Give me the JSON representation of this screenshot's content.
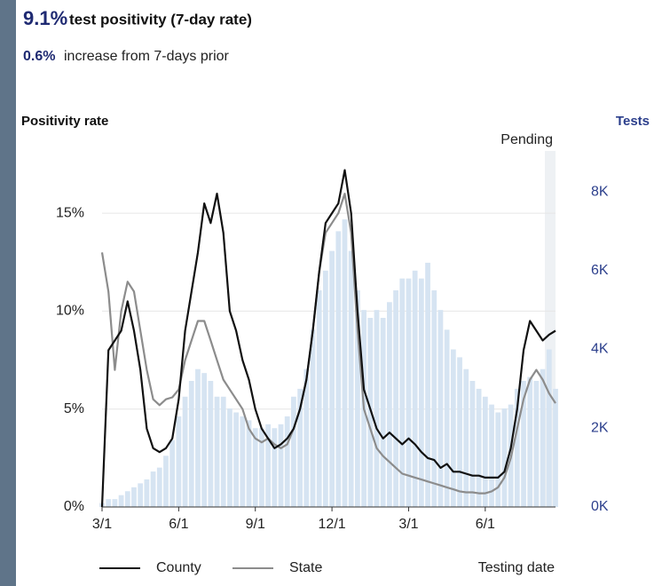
{
  "header": {
    "headline_value": "9.1%",
    "headline_text": "test positivity (7-day rate)",
    "change_value": "0.6%",
    "change_text": "increase from 7-days prior"
  },
  "chart_data": {
    "type": "line",
    "y_label": "Positivity rate",
    "y2_label": "Tests",
    "x_label": "Testing date",
    "annotation": "Pending",
    "categories": [
      "3/1",
      null,
      null,
      null,
      null,
      null,
      null,
      null,
      null,
      null,
      null,
      null,
      "6/1",
      null,
      null,
      null,
      null,
      null,
      null,
      null,
      null,
      null,
      null,
      null,
      "9/1",
      null,
      null,
      null,
      null,
      null,
      null,
      null,
      null,
      null,
      null,
      null,
      "12/1",
      null,
      null,
      null,
      null,
      null,
      null,
      null,
      null,
      null,
      null,
      null,
      "3/1",
      null,
      null,
      null,
      null,
      null,
      null,
      null,
      null,
      null,
      null,
      null,
      "6/1",
      null,
      null,
      null,
      null,
      null,
      null,
      null,
      null,
      null,
      null,
      null
    ],
    "series": [
      {
        "name": "Tests",
        "type": "bar",
        "axis": "y2",
        "color": "#d6e4f2",
        "values": [
          100,
          200,
          200,
          300,
          400,
          500,
          600,
          700,
          900,
          1000,
          1300,
          1700,
          2300,
          2800,
          3200,
          3500,
          3400,
          3200,
          2800,
          2800,
          2500,
          2400,
          2300,
          2200,
          2000,
          2000,
          2100,
          2000,
          2100,
          2300,
          2800,
          3000,
          3500,
          4500,
          5500,
          6000,
          6500,
          7000,
          7300,
          6500,
          5500,
          5000,
          4800,
          5000,
          4800,
          5200,
          5500,
          5800,
          5800,
          6000,
          5800,
          6200,
          5500,
          5000,
          4500,
          4000,
          3800,
          3500,
          3200,
          3000,
          2800,
          2600,
          2400,
          2500,
          2600,
          3000,
          3200,
          3300,
          3200,
          3500,
          4000,
          3000
        ]
      },
      {
        "name": "State",
        "type": "line",
        "color": "#8c8c8c",
        "values": [
          13,
          11,
          7,
          10,
          11.5,
          11,
          9,
          7,
          5.5,
          5.2,
          5.5,
          5.6,
          6,
          7.5,
          8.5,
          9.5,
          9.5,
          8.5,
          7.5,
          6.5,
          6,
          5.5,
          5,
          4,
          3.5,
          3.3,
          3.5,
          3.2,
          3,
          3.2,
          4,
          5,
          6.5,
          9,
          12,
          14,
          14.5,
          15,
          16,
          14,
          9,
          5,
          4,
          3,
          2.6,
          2.3,
          2,
          1.7,
          1.6,
          1.5,
          1.4,
          1.3,
          1.2,
          1.1,
          1.0,
          0.9,
          0.8,
          0.75,
          0.75,
          0.7,
          0.7,
          0.8,
          1,
          1.5,
          2.5,
          4,
          5.5,
          6.5,
          7,
          6.5,
          5.8,
          5.3
        ]
      },
      {
        "name": "County",
        "type": "line",
        "color": "#111111",
        "values": [
          0,
          8,
          8.5,
          9,
          10.5,
          9,
          7,
          4,
          3,
          2.8,
          3,
          3.5,
          5.5,
          9,
          11,
          13,
          15.5,
          14.5,
          16,
          14,
          10,
          9,
          7.5,
          6.5,
          5,
          4,
          3.5,
          3,
          3.2,
          3.5,
          4,
          5,
          6.5,
          9,
          12,
          14.5,
          15,
          15.5,
          17.2,
          15,
          10,
          6,
          5,
          4,
          3.5,
          3.8,
          3.5,
          3.2,
          3.5,
          3.2,
          2.8,
          2.5,
          2.4,
          2.0,
          2.2,
          1.8,
          1.8,
          1.7,
          1.6,
          1.6,
          1.5,
          1.5,
          1.5,
          1.8,
          3,
          5,
          8,
          9.5,
          9,
          8.5,
          8.8,
          9
        ]
      }
    ],
    "legend_order": [
      "County",
      "State"
    ],
    "ylim": [
      0,
      17.5
    ],
    "yticks": [
      {
        "value": 0,
        "label": "0%"
      },
      {
        "value": 5,
        "label": "5%"
      },
      {
        "value": 10,
        "label": "10%"
      },
      {
        "value": 15,
        "label": "15%"
      }
    ],
    "y2lim": [
      0,
      8700
    ],
    "y2ticks": [
      {
        "value": 0,
        "label": "0K"
      },
      {
        "value": 2000,
        "label": "2K"
      },
      {
        "value": 4000,
        "label": "4K"
      },
      {
        "value": 6000,
        "label": "6K"
      },
      {
        "value": 8000,
        "label": "8K"
      }
    ],
    "grid": true
  }
}
